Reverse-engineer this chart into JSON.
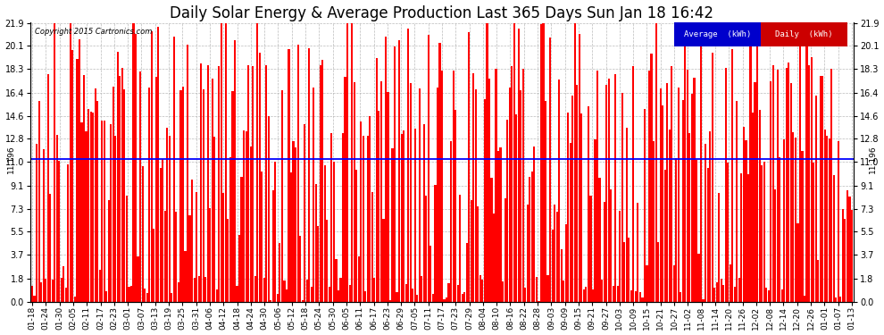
{
  "title": "Daily Solar Energy & Average Production Last 365 Days Sun Jan 18 16:42",
  "copyright_text": "Copyright 2015 Cartronics.com",
  "average_value": 11.196,
  "average_label": "11.196",
  "yticks": [
    0.0,
    1.8,
    3.7,
    5.5,
    7.3,
    9.1,
    11.0,
    12.8,
    14.6,
    16.4,
    18.3,
    20.1,
    21.9
  ],
  "bar_color": "#ff0000",
  "avg_line_color": "#0000ff",
  "background_color": "#ffffff",
  "grid_color": "#aaaaaa",
  "legend_avg_bg": "#0000cc",
  "legend_daily_bg": "#cc0000",
  "legend_avg_text": "Average  (kWh)",
  "legend_daily_text": "Daily  (kWh)",
  "xlabels": [
    "01-18",
    "01-24",
    "01-30",
    "02-05",
    "02-11",
    "02-17",
    "02-23",
    "03-01",
    "03-07",
    "03-13",
    "03-19",
    "03-25",
    "03-31",
    "04-06",
    "04-12",
    "04-18",
    "04-24",
    "04-30",
    "05-06",
    "05-12",
    "05-18",
    "05-24",
    "05-30",
    "06-05",
    "06-11",
    "06-17",
    "06-23",
    "06-29",
    "07-05",
    "07-11",
    "07-17",
    "07-23",
    "07-29",
    "08-04",
    "08-10",
    "08-16",
    "08-22",
    "08-28",
    "09-03",
    "09-09",
    "09-15",
    "09-21",
    "09-27",
    "10-03",
    "10-09",
    "10-15",
    "10-21",
    "10-27",
    "11-02",
    "11-08",
    "11-14",
    "11-20",
    "11-26",
    "12-02",
    "12-08",
    "12-14",
    "12-20",
    "12-26",
    "01-01",
    "01-07",
    "01-13"
  ],
  "num_bars": 365,
  "seed": 42,
  "ymax": 21.9,
  "ymin": 0.0,
  "title_fontsize": 12,
  "tick_fontsize": 7,
  "label_fontsize": 6.5,
  "avg_text_color": "#ffffff",
  "plot_bg_color": "#ffffff"
}
